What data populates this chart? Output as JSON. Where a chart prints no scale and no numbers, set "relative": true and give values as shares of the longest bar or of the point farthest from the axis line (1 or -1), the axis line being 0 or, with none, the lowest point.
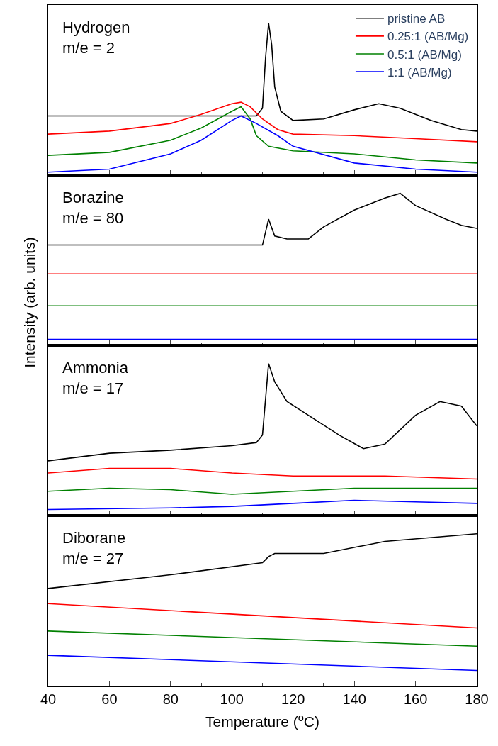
{
  "chart_data": [
    {
      "type": "line",
      "relative": true,
      "xlim": [
        40,
        180
      ],
      "xticks": [
        40,
        60,
        80,
        100,
        120,
        140,
        160,
        180
      ],
      "tick_labels": false,
      "legend": "top right",
      "annotations": [
        "Hydrogen\nm/e = 2"
      ],
      "series": [
        {
          "name": "pristine AB",
          "color": "#000000",
          "x": [
            40,
            108,
            110,
            111,
            112,
            113,
            114,
            116,
            120,
            130,
            140,
            148,
            155,
            165,
            175,
            180
          ],
          "values": [
            0.39,
            0.39,
            0.44,
            0.77,
            1.0,
            0.86,
            0.58,
            0.42,
            0.36,
            0.37,
            0.43,
            0.47,
            0.44,
            0.36,
            0.3,
            0.29
          ]
        },
        {
          "name": "0.25:1 (AB/Mg)",
          "color": "#ff0000",
          "x": [
            40,
            60,
            80,
            90,
            100,
            103,
            106,
            110,
            115,
            120,
            140,
            160,
            180
          ],
          "values": [
            0.27,
            0.29,
            0.34,
            0.4,
            0.47,
            0.48,
            0.45,
            0.37,
            0.3,
            0.27,
            0.26,
            0.24,
            0.22
          ]
        },
        {
          "name": "0.5:1 (AB/Mg)",
          "color": "#008000",
          "x": [
            40,
            60,
            80,
            90,
            100,
            103,
            106,
            108,
            112,
            120,
            140,
            160,
            180
          ],
          "values": [
            0.13,
            0.15,
            0.23,
            0.31,
            0.42,
            0.45,
            0.37,
            0.26,
            0.19,
            0.16,
            0.14,
            0.1,
            0.08
          ]
        },
        {
          "name": "1:1 (AB/Mg)",
          "color": "#0000ff",
          "x": [
            40,
            60,
            80,
            90,
            100,
            103,
            108,
            115,
            120,
            140,
            160,
            180
          ],
          "values": [
            0.02,
            0.04,
            0.14,
            0.23,
            0.36,
            0.39,
            0.34,
            0.26,
            0.19,
            0.08,
            0.04,
            0.02
          ]
        }
      ]
    },
    {
      "type": "line",
      "relative": true,
      "xlim": [
        40,
        180
      ],
      "xticks": [
        40,
        60,
        80,
        100,
        120,
        140,
        160,
        180
      ],
      "tick_labels": false,
      "ylabel": "Intensity (arb. units)",
      "annotations": [
        "Borazine\nm/e = 80"
      ],
      "series": [
        {
          "color": "#000000",
          "x": [
            40,
            110,
            112,
            114,
            118,
            125,
            130,
            140,
            150,
            155,
            160,
            170,
            175,
            180
          ],
          "values": [
            0.66,
            0.66,
            0.83,
            0.72,
            0.7,
            0.7,
            0.78,
            0.89,
            0.97,
            1.0,
            0.92,
            0.83,
            0.79,
            0.77
          ]
        },
        {
          "color": "#ff0000",
          "x": [
            40,
            180
          ],
          "values": [
            0.47,
            0.47
          ]
        },
        {
          "color": "#008000",
          "x": [
            40,
            180
          ],
          "values": [
            0.26,
            0.26
          ]
        },
        {
          "color": "#0000ff",
          "x": [
            40,
            180
          ],
          "values": [
            0.04,
            0.04
          ]
        }
      ]
    },
    {
      "type": "line",
      "relative": true,
      "xlim": [
        40,
        180
      ],
      "xticks": [
        40,
        60,
        80,
        100,
        120,
        140,
        160,
        180
      ],
      "tick_labels": false,
      "annotations": [
        "Ammonia\nm/e = 17"
      ],
      "series": [
        {
          "color": "#000000",
          "x": [
            40,
            60,
            80,
            100,
            108,
            110,
            112,
            114,
            118,
            125,
            135,
            143,
            150,
            160,
            168,
            175,
            180
          ],
          "values": [
            0.36,
            0.41,
            0.43,
            0.46,
            0.48,
            0.53,
            1.0,
            0.88,
            0.75,
            0.66,
            0.53,
            0.44,
            0.47,
            0.66,
            0.75,
            0.72,
            0.59
          ]
        },
        {
          "color": "#ff0000",
          "x": [
            40,
            60,
            80,
            100,
            120,
            150,
            180
          ],
          "values": [
            0.28,
            0.31,
            0.31,
            0.28,
            0.26,
            0.26,
            0.24
          ]
        },
        {
          "color": "#008000",
          "x": [
            40,
            60,
            80,
            100,
            120,
            140,
            160,
            180
          ],
          "values": [
            0.16,
            0.18,
            0.17,
            0.14,
            0.16,
            0.18,
            0.18,
            0.18
          ]
        },
        {
          "color": "#0000ff",
          "x": [
            40,
            80,
            100,
            120,
            140,
            160,
            180
          ],
          "values": [
            0.04,
            0.05,
            0.06,
            0.08,
            0.1,
            0.09,
            0.08
          ]
        }
      ]
    },
    {
      "type": "line",
      "relative": true,
      "xlim": [
        40,
        180
      ],
      "xticks": [
        40,
        60,
        80,
        100,
        120,
        140,
        160,
        180
      ],
      "tick_labels": "x",
      "xlabel": "Temperature ($^{o}$C)",
      "annotations": [
        "Diborane\nm/e = 27"
      ],
      "series": [
        {
          "color": "#000000",
          "x": [
            40,
            80,
            110,
            112,
            114,
            130,
            150,
            180
          ],
          "values": [
            0.64,
            0.73,
            0.81,
            0.85,
            0.87,
            0.87,
            0.95,
            1.0
          ]
        },
        {
          "color": "#ff0000",
          "x": [
            40,
            180
          ],
          "values": [
            0.54,
            0.38
          ]
        },
        {
          "color": "#008000",
          "x": [
            40,
            180
          ],
          "values": [
            0.36,
            0.26
          ]
        },
        {
          "color": "#0000ff",
          "x": [
            40,
            180
          ],
          "values": [
            0.2,
            0.1
          ]
        }
      ]
    }
  ]
}
